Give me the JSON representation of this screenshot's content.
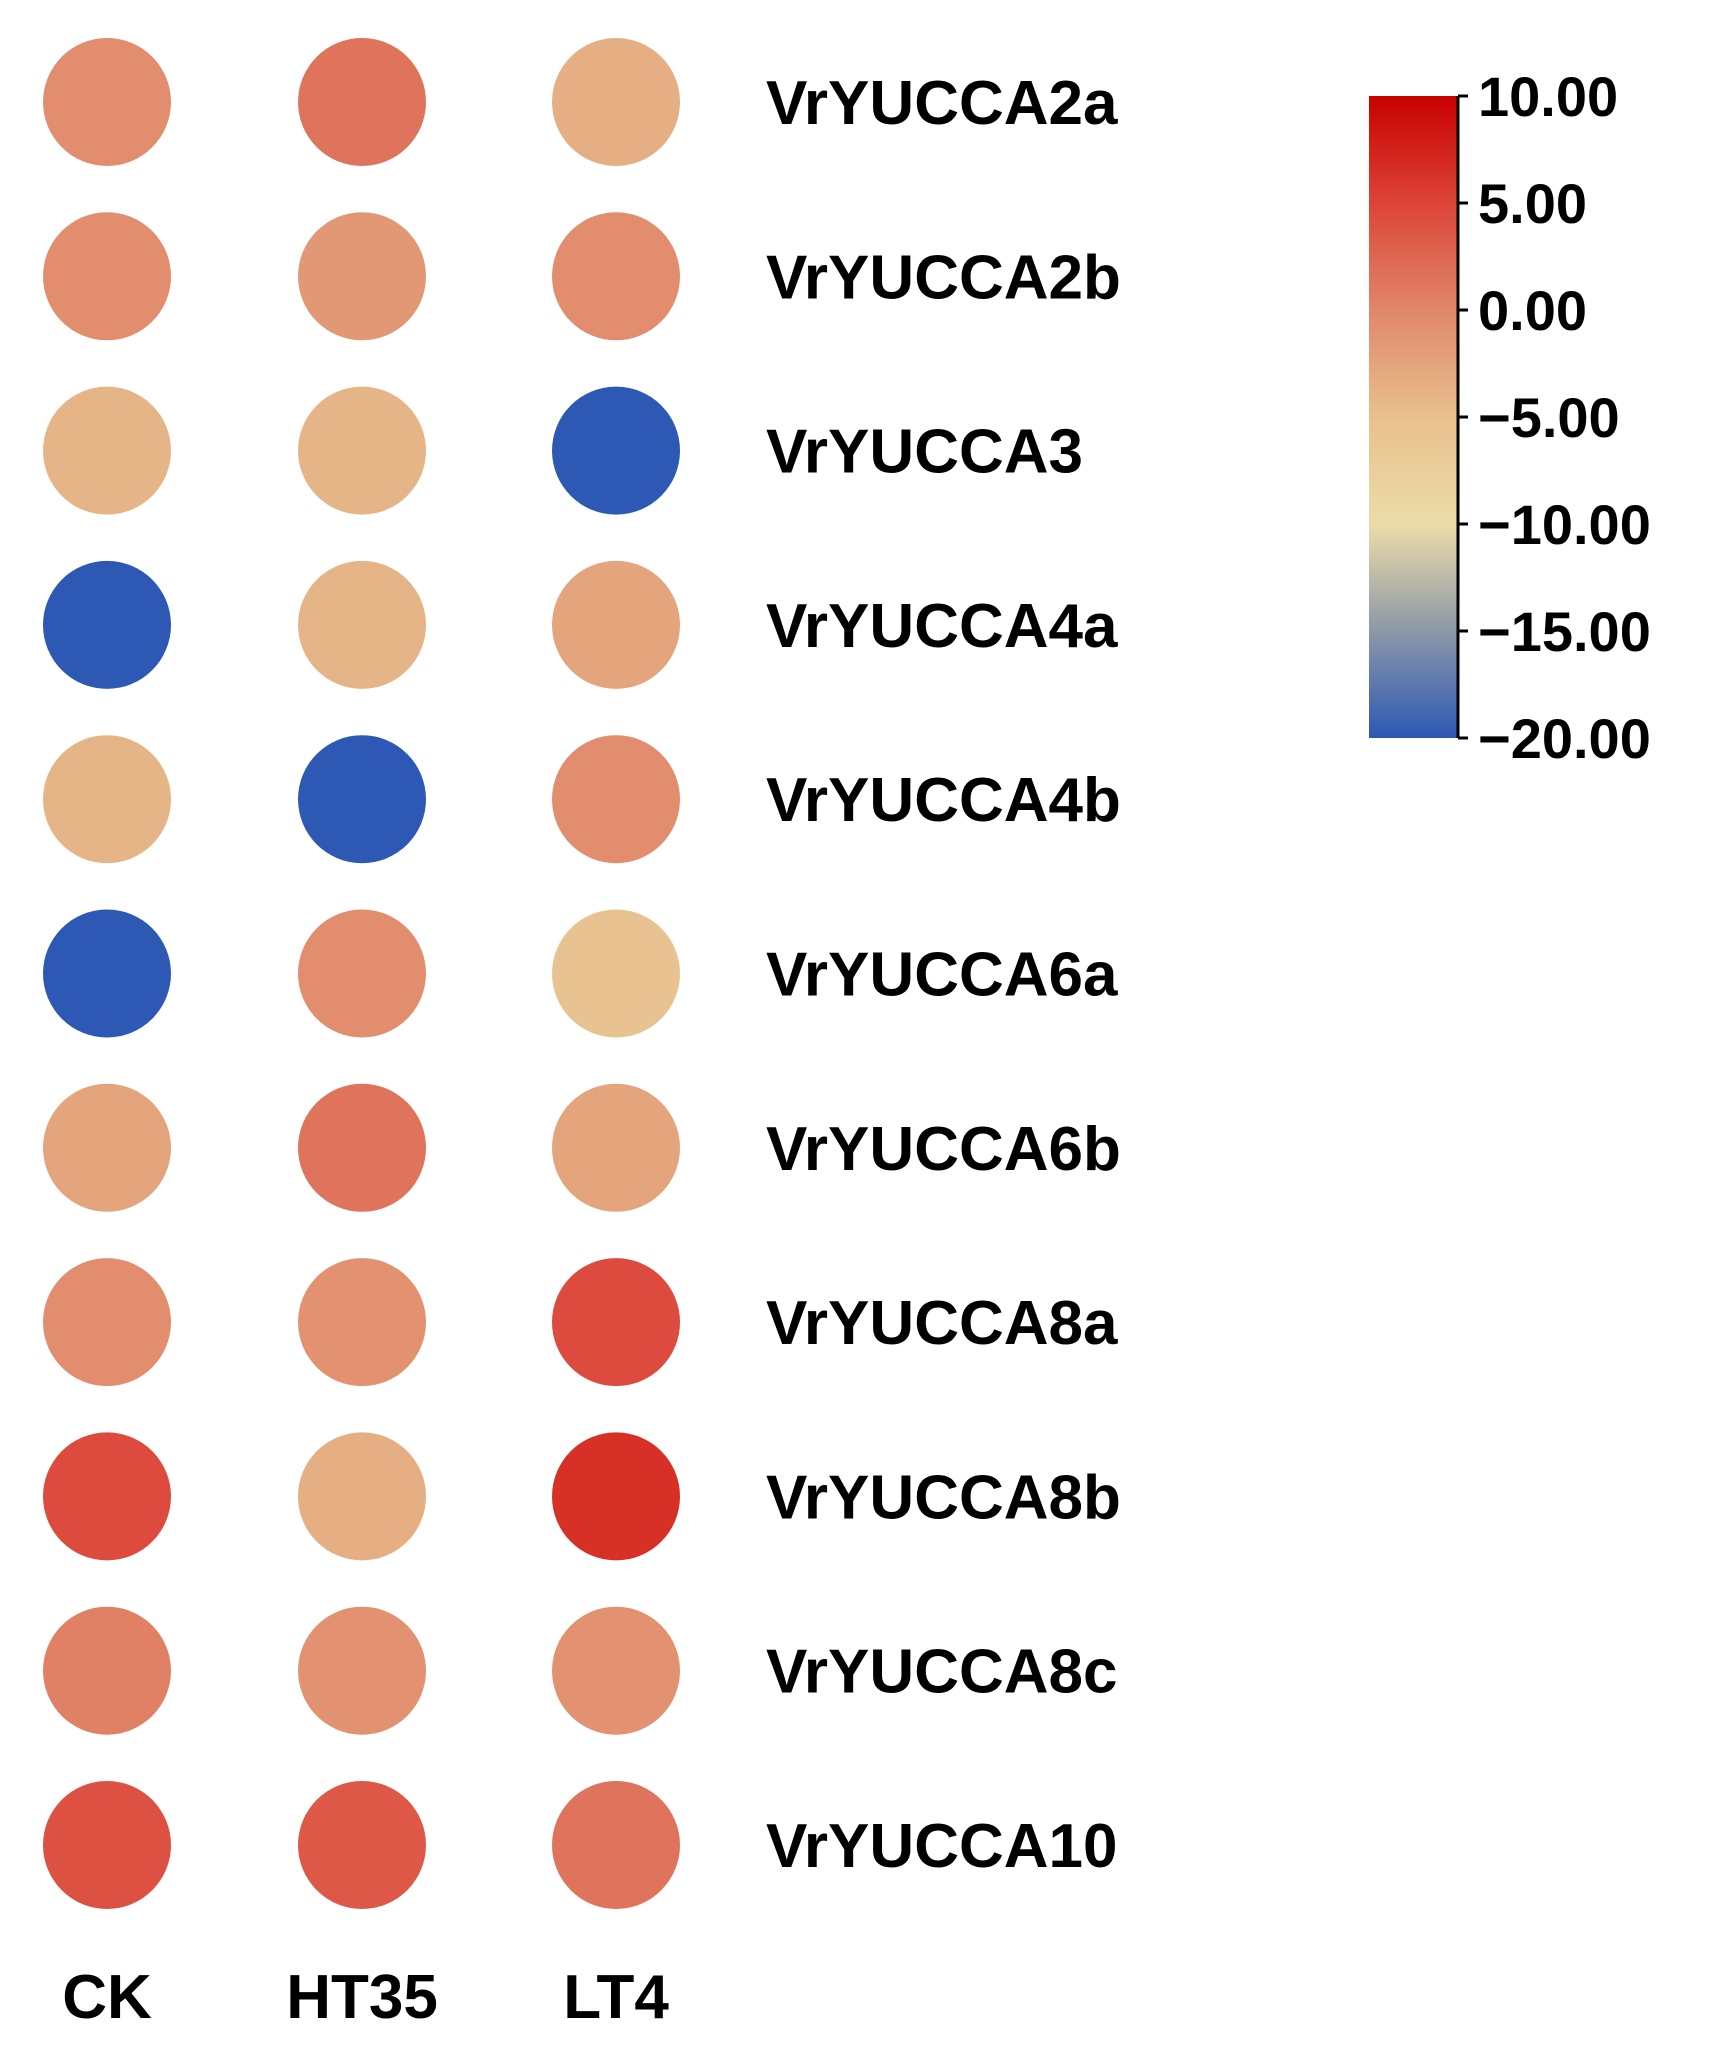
{
  "chart_data": {
    "type": "heatmap",
    "title": "",
    "columns": [
      "CK",
      "HT35",
      "LT4"
    ],
    "rows": [
      "VrYUCCA2a",
      "VrYUCCA2b",
      "VrYUCCA3",
      "VrYUCCA4a",
      "VrYUCCA4b",
      "VrYUCCA6a",
      "VrYUCCA6b",
      "VrYUCCA8a",
      "VrYUCCA8b",
      "VrYUCCA8c",
      "VrYUCCA10"
    ],
    "values": [
      [
        -0.5,
        1.5,
        -3.5
      ],
      [
        -0.5,
        -1.5,
        -0.5
      ],
      [
        -4.0,
        -4.0,
        -20.0
      ],
      [
        -20.0,
        -4.0,
        -2.5
      ],
      [
        -4.0,
        -20.0,
        -0.5
      ],
      [
        -20.0,
        -0.5,
        -5.5
      ],
      [
        -2.5,
        1.5,
        -2.5
      ],
      [
        -0.5,
        -1.0,
        4.5
      ],
      [
        4.5,
        -3.5,
        6.5
      ],
      [
        0.5,
        -1.0,
        -1.0
      ],
      [
        4.0,
        3.5,
        1.5
      ]
    ],
    "colorbar": {
      "min": -20.0,
      "max": 10.0,
      "ticks": [
        {
          "value": 10.0,
          "label": "10.00"
        },
        {
          "value": 5.0,
          "label": "5.00"
        },
        {
          "value": 0.0,
          "label": "0.00"
        },
        {
          "value": -5.0,
          "label": "−5.00"
        },
        {
          "value": -10.0,
          "label": "−10.00"
        },
        {
          "value": -15.0,
          "label": "−15.00"
        },
        {
          "value": -20.0,
          "label": "−20.00"
        }
      ],
      "stops": [
        {
          "value": 10.0,
          "color": "#c80000"
        },
        {
          "value": 5.0,
          "color": "#dc4438"
        },
        {
          "value": 0.0,
          "color": "#e0876a"
        },
        {
          "value": -5.0,
          "color": "#e8c08e"
        },
        {
          "value": -10.0,
          "color": "#ecdca8"
        },
        {
          "value": -15.0,
          "color": "#8c98a8"
        },
        {
          "value": -20.0,
          "color": "#2d58b3"
        }
      ]
    }
  }
}
